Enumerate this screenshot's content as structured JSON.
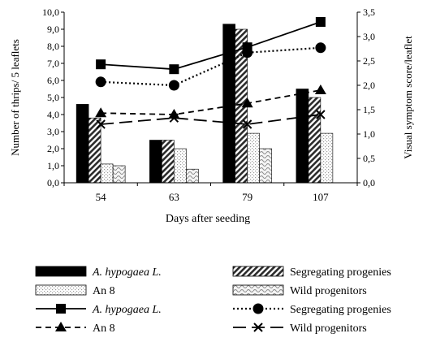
{
  "chart_data": {
    "type": "bar+line",
    "categories": [
      "54",
      "63",
      "79",
      "107"
    ],
    "xlabel": "Days after seeding",
    "ylabel_left": "Number of thrips/ 5 leaflets",
    "ylabel_right": "Visual symptom score/leaflet",
    "ylim_left": [
      0,
      10
    ],
    "ylim_right": [
      0,
      3.5
    ],
    "yticks_left": [
      "0,0",
      "1,0",
      "2,0",
      "3,0",
      "4,0",
      "5,0",
      "6,0",
      "7,0",
      "8,0",
      "9,0",
      "10,0"
    ],
    "yticks_right": [
      "0,0",
      "0,5",
      "1,0",
      "1,5",
      "2,0",
      "2,5",
      "3,0",
      "3,5"
    ],
    "bar_series": [
      {
        "name": "A. hypogaea L.",
        "values": [
          4.6,
          2.5,
          9.3,
          5.5
        ],
        "pattern": "solid-black"
      },
      {
        "name": "Segregating progenies",
        "values": [
          3.8,
          2.5,
          9.0,
          5.0
        ],
        "pattern": "diagonal-hatch"
      },
      {
        "name": "An 8",
        "values": [
          1.1,
          2.0,
          2.9,
          2.9
        ],
        "pattern": "dotted-light"
      },
      {
        "name": "Wild progenitors",
        "values": [
          1.0,
          0.8,
          2.0,
          0.0
        ],
        "pattern": "wavy-light"
      }
    ],
    "line_series": [
      {
        "name": "A. hypogaea L.",
        "values": [
          2.43,
          2.33,
          2.78,
          3.3
        ],
        "marker": "square",
        "dash": "solid"
      },
      {
        "name": "Segregating progenies",
        "values": [
          2.07,
          2.0,
          2.67,
          2.77
        ],
        "marker": "circle",
        "dash": "dotted"
      },
      {
        "name": "An 8",
        "values": [
          1.43,
          1.4,
          1.63,
          1.9
        ],
        "marker": "triangle",
        "dash": "dashed"
      },
      {
        "name": "Wild progenitors",
        "values": [
          1.2,
          1.33,
          1.2,
          1.4
        ],
        "marker": "x",
        "dash": "long-dash"
      }
    ],
    "grid": false,
    "legend_position": "bottom"
  }
}
